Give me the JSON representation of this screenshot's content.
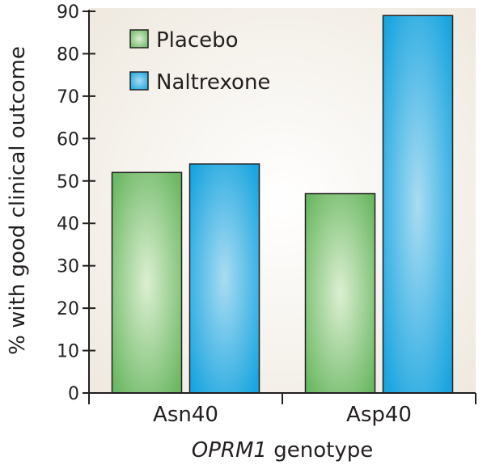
{
  "chart_data": {
    "type": "bar",
    "categories": [
      "Asn40",
      "Asp40"
    ],
    "series": [
      {
        "name": "Placebo",
        "values": [
          52,
          47
        ],
        "color": "#7fc47a"
      },
      {
        "name": "Naltrexone",
        "values": [
          54,
          89
        ],
        "color": "#29abe2"
      }
    ],
    "ylabel": "% with good clinical outcome",
    "xlabel_prefix": "OPRM1",
    "xlabel_suffix": " genotype",
    "ylim": [
      0,
      90
    ],
    "yticks": [
      0,
      10,
      20,
      30,
      40,
      50,
      60,
      70,
      80,
      90
    ],
    "grid": false,
    "legend_position": "top-left"
  },
  "colors": {
    "plot_background": "#f3eee6",
    "axis": "#231f20"
  }
}
